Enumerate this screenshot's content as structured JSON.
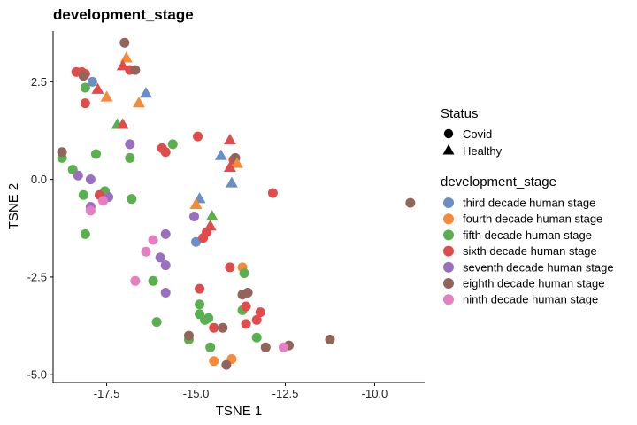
{
  "chart_data": {
    "type": "scatter",
    "title": "development_stage",
    "xlabel": "TSNE 1",
    "ylabel": "TSNE 2",
    "xlim": [
      -19.0,
      -8.6
    ],
    "ylim": [
      -5.2,
      3.8
    ],
    "x_ticks": [
      -17.5,
      -15.0,
      -12.5,
      -10.0
    ],
    "x_tick_labels": [
      "-17.5",
      "-15.0",
      "-12.5",
      "-10.0"
    ],
    "y_ticks": [
      -5.0,
      -2.5,
      0.0,
      2.5
    ],
    "y_tick_labels": [
      "-5.0",
      "-2.5",
      "0.0",
      "2.5"
    ],
    "grid": false,
    "legend_placement": "right",
    "status_legend": {
      "title": "Status",
      "items": [
        {
          "label": "Covid",
          "shape": "circle"
        },
        {
          "label": "Healthy",
          "shape": "triangle"
        }
      ]
    },
    "stage_legend": {
      "title": "development_stage",
      "items": [
        {
          "label": "third decade human stage",
          "color": "#6a8fc8"
        },
        {
          "label": "fourth decade human stage",
          "color": "#f58a3a"
        },
        {
          "label": "fifth decade human stage",
          "color": "#5ab04e"
        },
        {
          "label": "sixth decade human stage",
          "color": "#e04b4b"
        },
        {
          "label": "seventh decade human stage",
          "color": "#9a6fc0"
        },
        {
          "label": "eighth decade human stage",
          "color": "#93645a"
        },
        {
          "label": "ninth decade human stage",
          "color": "#e67fc2"
        }
      ]
    },
    "points": [
      {
        "x": -17.9,
        "y": 2.5,
        "stage": 0,
        "status": "Covid"
      },
      {
        "x": -15.0,
        "y": -1.6,
        "stage": 0,
        "status": "Covid"
      },
      {
        "x": -16.4,
        "y": 2.2,
        "stage": 0,
        "status": "Healthy"
      },
      {
        "x": -14.3,
        "y": 0.6,
        "stage": 0,
        "status": "Healthy"
      },
      {
        "x": -14.0,
        "y": -0.1,
        "stage": 0,
        "status": "Healthy"
      },
      {
        "x": -14.9,
        "y": -0.5,
        "stage": 0,
        "status": "Healthy"
      },
      {
        "x": -13.7,
        "y": -2.25,
        "stage": 1,
        "status": "Covid"
      },
      {
        "x": -14.5,
        "y": -4.65,
        "stage": 1,
        "status": "Covid"
      },
      {
        "x": -14.0,
        "y": -4.6,
        "stage": 1,
        "status": "Covid"
      },
      {
        "x": -16.95,
        "y": 3.1,
        "stage": 1,
        "status": "Healthy"
      },
      {
        "x": -17.5,
        "y": 2.1,
        "stage": 1,
        "status": "Healthy"
      },
      {
        "x": -16.6,
        "y": 1.95,
        "stage": 1,
        "status": "Healthy"
      },
      {
        "x": -13.85,
        "y": 0.4,
        "stage": 1,
        "status": "Healthy"
      },
      {
        "x": -15.0,
        "y": -0.65,
        "stage": 1,
        "status": "Healthy"
      },
      {
        "x": -18.75,
        "y": 0.55,
        "stage": 2,
        "status": "Covid"
      },
      {
        "x": -18.45,
        "y": 0.25,
        "stage": 2,
        "status": "Covid"
      },
      {
        "x": -18.1,
        "y": 2.35,
        "stage": 2,
        "status": "Covid"
      },
      {
        "x": -17.8,
        "y": 0.65,
        "stage": 2,
        "status": "Covid"
      },
      {
        "x": -18.15,
        "y": -0.4,
        "stage": 2,
        "status": "Covid"
      },
      {
        "x": -17.55,
        "y": -0.3,
        "stage": 2,
        "status": "Covid"
      },
      {
        "x": -16.8,
        "y": -0.5,
        "stage": 2,
        "status": "Covid"
      },
      {
        "x": -16.85,
        "y": 0.55,
        "stage": 2,
        "status": "Covid"
      },
      {
        "x": -15.65,
        "y": 0.9,
        "stage": 2,
        "status": "Covid"
      },
      {
        "x": -18.1,
        "y": -1.4,
        "stage": 2,
        "status": "Covid"
      },
      {
        "x": -16.2,
        "y": -2.6,
        "stage": 2,
        "status": "Covid"
      },
      {
        "x": -16.1,
        "y": -3.65,
        "stage": 2,
        "status": "Covid"
      },
      {
        "x": -14.9,
        "y": -3.2,
        "stage": 2,
        "status": "Covid"
      },
      {
        "x": -14.9,
        "y": -3.45,
        "stage": 2,
        "status": "Covid"
      },
      {
        "x": -14.75,
        "y": -3.6,
        "stage": 2,
        "status": "Covid"
      },
      {
        "x": -14.65,
        "y": -3.55,
        "stage": 2,
        "status": "Covid"
      },
      {
        "x": -13.65,
        "y": -2.4,
        "stage": 2,
        "status": "Covid"
      },
      {
        "x": -13.7,
        "y": -3.35,
        "stage": 2,
        "status": "Covid"
      },
      {
        "x": -13.3,
        "y": -4.05,
        "stage": 2,
        "status": "Covid"
      },
      {
        "x": -14.6,
        "y": -4.3,
        "stage": 2,
        "status": "Covid"
      },
      {
        "x": -15.2,
        "y": -4.1,
        "stage": 2,
        "status": "Covid"
      },
      {
        "x": -17.2,
        "y": 1.4,
        "stage": 2,
        "status": "Healthy"
      },
      {
        "x": -14.55,
        "y": -0.95,
        "stage": 2,
        "status": "Healthy"
      },
      {
        "x": -18.35,
        "y": 2.75,
        "stage": 3,
        "status": "Covid"
      },
      {
        "x": -18.2,
        "y": 2.75,
        "stage": 3,
        "status": "Covid"
      },
      {
        "x": -18.1,
        "y": 2.7,
        "stage": 3,
        "status": "Covid"
      },
      {
        "x": -18.1,
        "y": 1.95,
        "stage": 3,
        "status": "Covid"
      },
      {
        "x": -17.7,
        "y": -0.4,
        "stage": 3,
        "status": "Covid"
      },
      {
        "x": -16.85,
        "y": 2.8,
        "stage": 3,
        "status": "Covid"
      },
      {
        "x": -15.95,
        "y": 0.8,
        "stage": 3,
        "status": "Covid"
      },
      {
        "x": -15.85,
        "y": 0.7,
        "stage": 3,
        "status": "Covid"
      },
      {
        "x": -14.95,
        "y": 1.1,
        "stage": 3,
        "status": "Covid"
      },
      {
        "x": -13.95,
        "y": 0.5,
        "stage": 3,
        "status": "Covid"
      },
      {
        "x": -12.85,
        "y": -0.35,
        "stage": 3,
        "status": "Covid"
      },
      {
        "x": -14.7,
        "y": -1.35,
        "stage": 3,
        "status": "Covid"
      },
      {
        "x": -14.8,
        "y": -1.5,
        "stage": 3,
        "status": "Covid"
      },
      {
        "x": -14.05,
        "y": -2.25,
        "stage": 3,
        "status": "Covid"
      },
      {
        "x": -14.9,
        "y": -2.8,
        "stage": 3,
        "status": "Covid"
      },
      {
        "x": -13.6,
        "y": -3.25,
        "stage": 3,
        "status": "Covid"
      },
      {
        "x": -13.2,
        "y": -3.4,
        "stage": 3,
        "status": "Covid"
      },
      {
        "x": -13.3,
        "y": -3.6,
        "stage": 3,
        "status": "Covid"
      },
      {
        "x": -13.6,
        "y": -3.7,
        "stage": 3,
        "status": "Covid"
      },
      {
        "x": -14.5,
        "y": -3.8,
        "stage": 3,
        "status": "Covid"
      },
      {
        "x": -17.05,
        "y": 2.9,
        "stage": 3,
        "status": "Healthy"
      },
      {
        "x": -17.75,
        "y": 2.3,
        "stage": 3,
        "status": "Healthy"
      },
      {
        "x": -17.05,
        "y": 1.4,
        "stage": 3,
        "status": "Healthy"
      },
      {
        "x": -14.05,
        "y": 1.0,
        "stage": 3,
        "status": "Healthy"
      },
      {
        "x": -14.05,
        "y": 0.3,
        "stage": 3,
        "status": "Healthy"
      },
      {
        "x": -14.6,
        "y": -1.2,
        "stage": 3,
        "status": "Healthy"
      },
      {
        "x": -18.3,
        "y": 0.1,
        "stage": 4,
        "status": "Covid"
      },
      {
        "x": -17.95,
        "y": 0.0,
        "stage": 4,
        "status": "Covid"
      },
      {
        "x": -17.45,
        "y": -0.45,
        "stage": 4,
        "status": "Covid"
      },
      {
        "x": -17.95,
        "y": -0.7,
        "stage": 4,
        "status": "Covid"
      },
      {
        "x": -16.85,
        "y": 0.9,
        "stage": 4,
        "status": "Covid"
      },
      {
        "x": -15.05,
        "y": -0.95,
        "stage": 4,
        "status": "Covid"
      },
      {
        "x": -15.85,
        "y": -1.4,
        "stage": 4,
        "status": "Covid"
      },
      {
        "x": -16.0,
        "y": -2.0,
        "stage": 4,
        "status": "Covid"
      },
      {
        "x": -15.85,
        "y": -2.2,
        "stage": 4,
        "status": "Covid"
      },
      {
        "x": -15.85,
        "y": -2.9,
        "stage": 4,
        "status": "Covid"
      },
      {
        "x": -18.75,
        "y": 0.7,
        "stage": 5,
        "status": "Covid"
      },
      {
        "x": -17.0,
        "y": 3.5,
        "stage": 5,
        "status": "Covid"
      },
      {
        "x": -16.7,
        "y": 2.8,
        "stage": 5,
        "status": "Covid"
      },
      {
        "x": -18.15,
        "y": 2.65,
        "stage": 5,
        "status": "Covid"
      },
      {
        "x": -13.9,
        "y": 0.55,
        "stage": 5,
        "status": "Covid"
      },
      {
        "x": -9.0,
        "y": -0.6,
        "stage": 5,
        "status": "Covid"
      },
      {
        "x": -13.55,
        "y": -2.9,
        "stage": 5,
        "status": "Covid"
      },
      {
        "x": -13.7,
        "y": -2.95,
        "stage": 5,
        "status": "Covid"
      },
      {
        "x": -15.2,
        "y": -4.0,
        "stage": 5,
        "status": "Covid"
      },
      {
        "x": -14.25,
        "y": -3.8,
        "stage": 5,
        "status": "Covid"
      },
      {
        "x": -14.15,
        "y": -4.75,
        "stage": 5,
        "status": "Covid"
      },
      {
        "x": -13.05,
        "y": -4.3,
        "stage": 5,
        "status": "Covid"
      },
      {
        "x": -12.4,
        "y": -4.25,
        "stage": 5,
        "status": "Covid"
      },
      {
        "x": -11.25,
        "y": -4.1,
        "stage": 5,
        "status": "Covid"
      },
      {
        "x": -17.6,
        "y": -0.55,
        "stage": 6,
        "status": "Covid"
      },
      {
        "x": -17.95,
        "y": -0.8,
        "stage": 6,
        "status": "Covid"
      },
      {
        "x": -16.2,
        "y": -1.55,
        "stage": 6,
        "status": "Covid"
      },
      {
        "x": -16.4,
        "y": -1.85,
        "stage": 6,
        "status": "Covid"
      },
      {
        "x": -16.7,
        "y": -2.6,
        "stage": 6,
        "status": "Covid"
      },
      {
        "x": -12.55,
        "y": -4.3,
        "stage": 6,
        "status": "Covid"
      }
    ]
  }
}
